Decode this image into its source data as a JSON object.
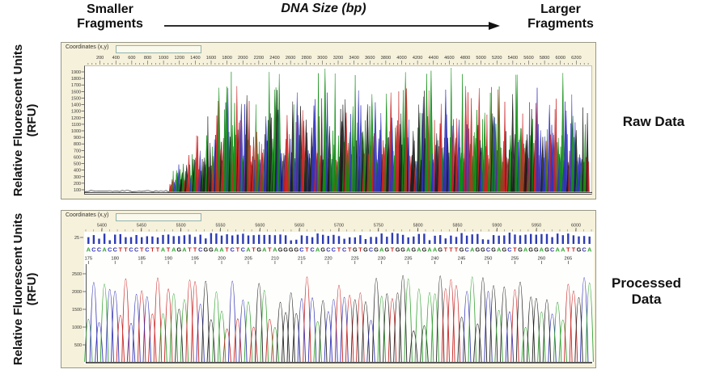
{
  "header": {
    "left_label": "Smaller Fragments",
    "axis_title": "DNA Size (bp)",
    "right_label": "Larger Fragments"
  },
  "left_axis": {
    "raw_label": "Relative Fluorescent Units (RFU)",
    "processed_label": "Relative Fluorescent Units (RFU)"
  },
  "right_labels": {
    "raw": "Raw Data",
    "processed": "Processed Data"
  },
  "raw_panel": {
    "coordinates_label": "Coordinates (x,y)",
    "coordinates_value": "",
    "x_ticks": [
      200,
      400,
      600,
      800,
      1000,
      1200,
      1400,
      1600,
      1800,
      2000,
      2200,
      2400,
      2600,
      2800,
      3000,
      3200,
      3400,
      3600,
      3800,
      4000,
      4200,
      4400,
      4600,
      4800,
      5000,
      5200,
      5400,
      5600,
      5800,
      6000,
      6200
    ],
    "y_ticks": [
      1900,
      1800,
      1700,
      1600,
      1500,
      1400,
      1300,
      1200,
      1100,
      1000,
      900,
      800,
      700,
      600,
      500,
      400,
      300,
      200,
      100
    ]
  },
  "processed_panel": {
    "coordinates_label": "Coordinates (x,y)",
    "coordinates_value": "",
    "scan_ticks": [
      5400,
      5450,
      5500,
      5550,
      5600,
      5650,
      5700,
      5750,
      5800,
      5850,
      5900,
      5950,
      6000
    ],
    "quality_axis_label": "25",
    "sequence": "ACCACCTTCCTCTTATAGATTCGGAATCTCATGATAGGGGCTCAGCCTCTGTGCGAGTGGAGAGAAGTTTGCAGGCGAGCTGAGGAGCAATTGCA",
    "base_positions": [
      175,
      180,
      185,
      190,
      195,
      200,
      205,
      210,
      215,
      220,
      225,
      230,
      235,
      240,
      245,
      250,
      255,
      260,
      265
    ],
    "y_ticks": [
      2500,
      2000,
      1500,
      1000,
      500
    ]
  },
  "colors": {
    "panel_background": "#f6f1da",
    "trace_green": "#0e8c12",
    "trace_red": "#c92222",
    "trace_blue": "#3232b8",
    "trace_black": "#1c1c1c",
    "base_A": "#2fa02f",
    "base_C": "#3232b8",
    "base_T": "#c92222",
    "base_G": "#222222",
    "quality_bar": "#2d3bb5"
  }
}
